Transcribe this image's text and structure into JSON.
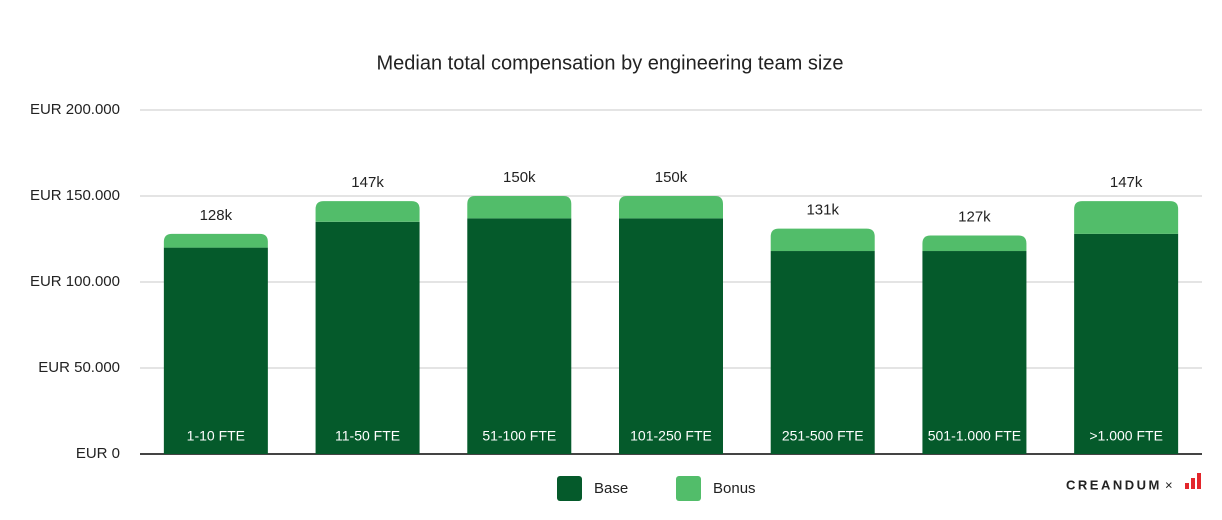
{
  "chart_data": {
    "type": "stacked_bar",
    "title": "Median total compensation by engineering team size",
    "categories": [
      "1-10 FTE",
      "11-50 FTE",
      "51-100 FTE",
      "101-250 FTE",
      "251-500 FTE",
      "501-1.000 FTE",
      ">1.000 FTE"
    ],
    "series": [
      {
        "name": "Base",
        "color": "#055a2b",
        "values": [
          120000,
          135000,
          137000,
          137000,
          118000,
          118000,
          128000
        ]
      },
      {
        "name": "Bonus",
        "color": "#52bd6a",
        "values": [
          8000,
          12000,
          13000,
          13000,
          13000,
          9000,
          19000
        ]
      }
    ],
    "total_labels": [
      "128k",
      "147k",
      "150k",
      "150k",
      "131k",
      "127k",
      "147k"
    ],
    "ylim": [
      0,
      200000
    ],
    "yticks": [
      {
        "value": 0,
        "label": "EUR 0"
      },
      {
        "value": 50000,
        "label": "EUR 50.000"
      },
      {
        "value": 100000,
        "label": "EUR 100.000"
      },
      {
        "value": 150000,
        "label": "EUR 150.000"
      },
      {
        "value": 200000,
        "label": "EUR 200.000"
      }
    ],
    "grid": true,
    "legend": "bottom",
    "brand": "CREANDUM",
    "brand_suffix": "×"
  }
}
